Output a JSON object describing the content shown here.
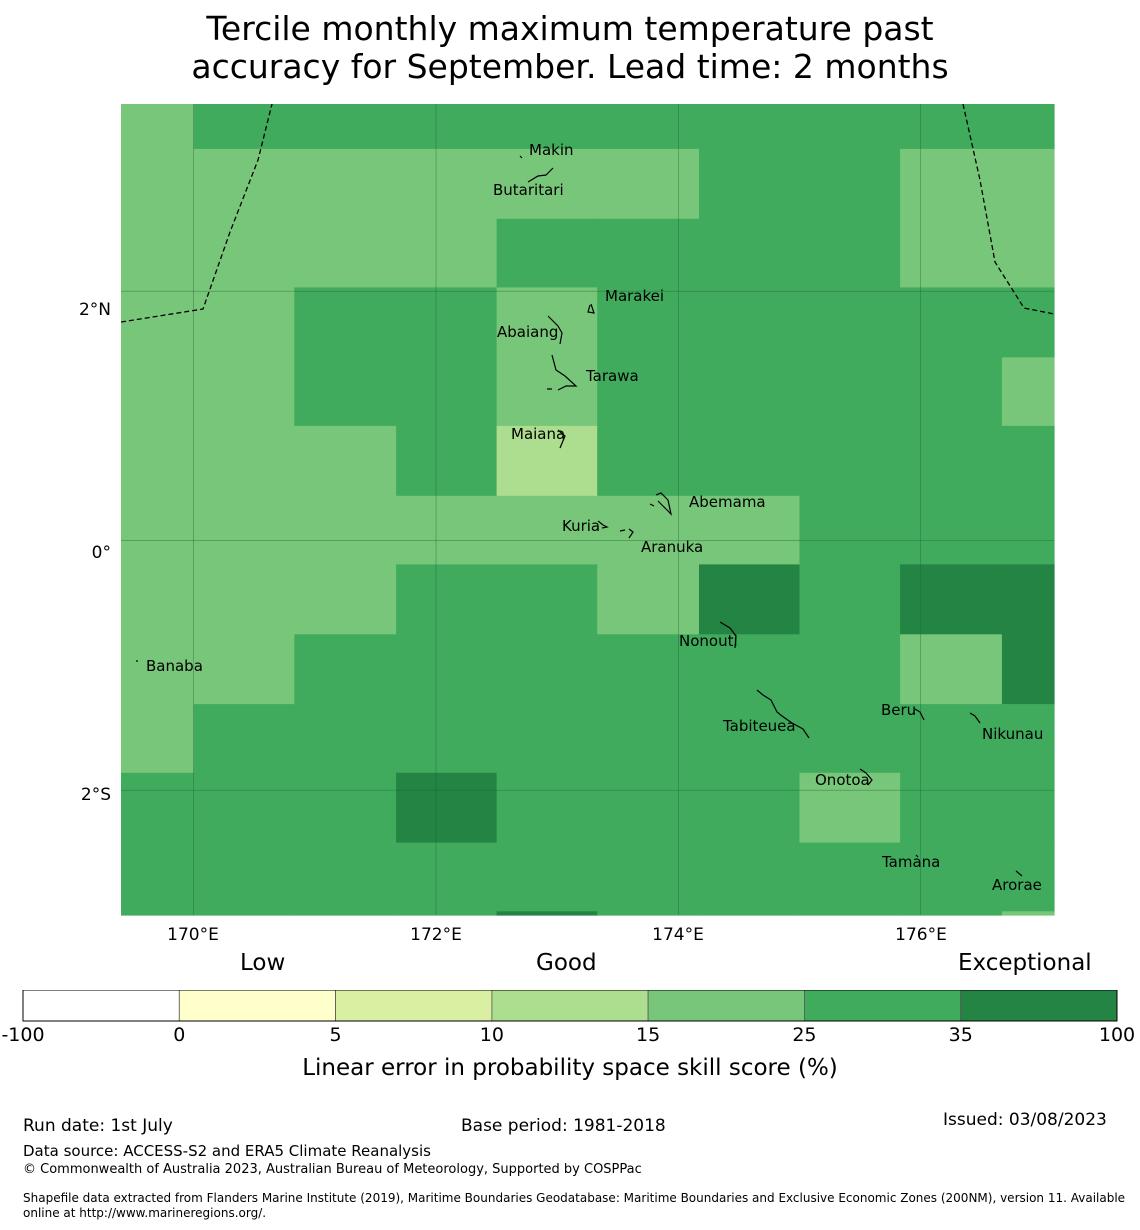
{
  "title": "Tercile monthly maximum temperature past\naccuracy for September. Lead time: 2 months",
  "map": {
    "lat_range": [
      -3.0,
      3.5
    ],
    "lon_range": [
      169.4,
      177.1
    ],
    "lat_ticks": [
      {
        "value": 2,
        "label": "2°N"
      },
      {
        "value": 0,
        "label": "0°"
      },
      {
        "value": -2,
        "label": "2°S"
      }
    ],
    "lon_ticks": [
      {
        "value": 170,
        "label": "170°E"
      },
      {
        "value": 172,
        "label": "172°E"
      },
      {
        "value": 174,
        "label": "174°E"
      },
      {
        "value": 176,
        "label": "176°E"
      }
    ],
    "grid_columns_lon": [
      169.4,
      170.0,
      170.83,
      171.67,
      172.5,
      173.33,
      174.17,
      175.0,
      175.83,
      176.67,
      177.1
    ],
    "grid_rows_lat": [
      3.5,
      3.14,
      2.58,
      2.03,
      1.47,
      0.92,
      0.36,
      -0.19,
      -0.75,
      -1.31,
      -1.86,
      -2.42,
      -2.97,
      -3.0
    ],
    "skill_grid": [
      [
        "l",
        "m",
        "m",
        "m",
        "m",
        "m",
        "m",
        "m",
        "m",
        "m"
      ],
      [
        "l",
        "l",
        "l",
        "l",
        "l",
        "l",
        "m",
        "m",
        "l",
        "l"
      ],
      [
        "l",
        "l",
        "l",
        "l",
        "m",
        "m",
        "m",
        "m",
        "l",
        "l"
      ],
      [
        "l",
        "l",
        "m",
        "m",
        "l",
        "m",
        "m",
        "m",
        "m",
        "m"
      ],
      [
        "l",
        "l",
        "m",
        "m",
        "l",
        "m",
        "m",
        "m",
        "m",
        "l"
      ],
      [
        "l",
        "l",
        "l",
        "m",
        "p",
        "m",
        "m",
        "m",
        "m",
        "m"
      ],
      [
        "l",
        "l",
        "l",
        "l",
        "l",
        "l",
        "l",
        "m",
        "m",
        "m"
      ],
      [
        "l",
        "l",
        "l",
        "m",
        "m",
        "l",
        "d",
        "m",
        "d",
        "d"
      ],
      [
        "l",
        "l",
        "m",
        "m",
        "m",
        "m",
        "m",
        "m",
        "l",
        "d"
      ],
      [
        "l",
        "m",
        "m",
        "m",
        "m",
        "m",
        "m",
        "m",
        "m",
        "m"
      ],
      [
        "m",
        "m",
        "m",
        "d",
        "m",
        "m",
        "m",
        "l",
        "m",
        "m"
      ],
      [
        "m",
        "m",
        "m",
        "m",
        "m",
        "m",
        "m",
        "m",
        "m",
        "m"
      ],
      [
        "m",
        "m",
        "m",
        "m",
        "d",
        "m",
        "m",
        "m",
        "m",
        "l"
      ]
    ],
    "islands": [
      {
        "name": "Makin",
        "lon": 172.95,
        "lat": 3.15
      },
      {
        "name": "Butaritari",
        "lon": 172.78,
        "lat": 3.07
      },
      {
        "name": "Marakei",
        "lon": 173.28,
        "lat": 2.0
      },
      {
        "name": "Abaiang",
        "lon": 172.97,
        "lat": 1.85
      },
      {
        "name": "Tarawa",
        "lon": 173.0,
        "lat": 1.42
      },
      {
        "name": "Maiana",
        "lon": 173.0,
        "lat": 0.92
      },
      {
        "name": "Abemama",
        "lon": 173.85,
        "lat": 0.4
      },
      {
        "name": "Kuria",
        "lon": 173.42,
        "lat": 0.23
      },
      {
        "name": "Aranuka",
        "lon": 173.62,
        "lat": 0.17
      },
      {
        "name": "Nonouti",
        "lon": 174.4,
        "lat": -0.65
      },
      {
        "name": "Tabiteuea",
        "lon": 174.8,
        "lat": -1.35
      },
      {
        "name": "Beru",
        "lon": 176.0,
        "lat": -1.33
      },
      {
        "name": "Nikunau",
        "lon": 176.45,
        "lat": -1.37
      },
      {
        "name": "Onotoa",
        "lon": 175.55,
        "lat": -1.8
      },
      {
        "name": "Tamana",
        "lon": 175.98,
        "lat": -2.5
      },
      {
        "name": "Arorae",
        "lon": 176.82,
        "lat": -2.65
      },
      {
        "name": "Banaba",
        "lon": 169.53,
        "lat": -0.86
      }
    ]
  },
  "colorbar": {
    "category_labels": {
      "low": "Low",
      "good": "Good",
      "exceptional": "Exceptional"
    },
    "bins": [
      {
        "from": -100,
        "to": 0,
        "color": "#ffffff"
      },
      {
        "from": 0,
        "to": 5,
        "color": "#ffffcc"
      },
      {
        "from": 5,
        "to": 10,
        "color": "#d9f0a3"
      },
      {
        "from": 10,
        "to": 15,
        "color": "#addd8e"
      },
      {
        "from": 15,
        "to": 25,
        "color": "#78c679"
      },
      {
        "from": 25,
        "to": 35,
        "color": "#41ab5d"
      },
      {
        "from": 35,
        "to": 100,
        "color": "#238443"
      }
    ],
    "tick_labels": [
      "-100",
      "0",
      "5",
      "10",
      "15",
      "25",
      "35",
      "100"
    ],
    "label": "Linear error in probability space skill score (%)"
  },
  "footer": {
    "run_date": "Run date: 1st July",
    "base_period": "Base period: 1981-2018",
    "issued": "Issued: 03/08/2023",
    "data_source": "Data source: ACCESS-S2 and ERA5 Climate Reanalysis",
    "copyright": "© Commonwealth of Australia 2023, Australian Bureau of Meteorology, Supported by COSPPac",
    "shapefile": "Shapefile data extracted from Flanders Marine Institute (2019), Maritime Boundaries Geodatabase: Maritime Boundaries and Exclusive Economic Zones (200NM), version 11. Available online at http://www.marineregions.org/."
  },
  "colors": {
    "l": "#78c679",
    "m": "#41ab5d",
    "d": "#238443",
    "p": "#addd8e"
  }
}
